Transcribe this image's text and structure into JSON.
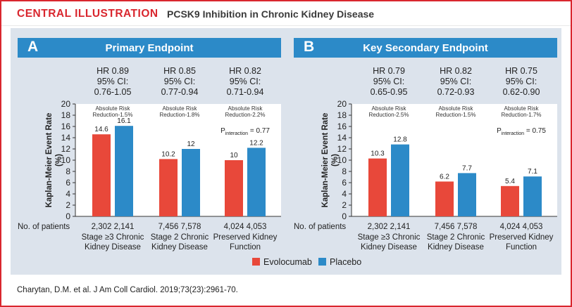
{
  "header": {
    "label": "CENTRAL ILLUSTRATION",
    "title": "PCSK9 Inhibition in Chronic Kidney Disease"
  },
  "citation": "Charytan, D.M. et al. J Am Coll Cardiol. 2019;73(23):2961-70.",
  "legend": [
    {
      "label": "Evolocumab",
      "color": "#e8483a"
    },
    {
      "label": "Placebo",
      "color": "#2c8ac8"
    }
  ],
  "colors": {
    "evolocumab": "#e8483a",
    "placebo": "#2c8ac8",
    "panel_header": "#2c8ac8",
    "accent": "#d9262e"
  },
  "chart_data": [
    {
      "type": "bar",
      "panel_letter": "A",
      "title": "Primary Endpoint",
      "ylabel": "Kaplan-Meier Event Rate (%)",
      "ylabel_lines": [
        "Kaplan-Meier Event Rate",
        "(%)"
      ],
      "ylim": [
        0,
        20
      ],
      "yticks": [
        0,
        2,
        4,
        6,
        8,
        10,
        12,
        14,
        16,
        18,
        20
      ],
      "n_patients_label": "No. of patients",
      "pinteraction": {
        "prefix": "P",
        "subscript": "interaction",
        "value": " = 0.77"
      },
      "categories": [
        {
          "lines": [
            "Stage ≥3 Chronic",
            "Kidney Disease"
          ],
          "hr": [
            "HR 0.89",
            "95% CI:",
            "0.76-1.05"
          ],
          "arr": [
            "Absolute Risk",
            "Reduction-1.5%"
          ],
          "n": [
            "2,302",
            "2,141"
          ]
        },
        {
          "lines": [
            "Stage 2 Chronic",
            "Kidney Disease"
          ],
          "hr": [
            "HR 0.85",
            "95% CI:",
            "0.77-0.94"
          ],
          "arr": [
            "Absolute Risk",
            "Reduction-1.8%"
          ],
          "n": [
            "7,456",
            "7,578"
          ]
        },
        {
          "lines": [
            "Preserved Kidney",
            "Function"
          ],
          "hr": [
            "HR 0.82",
            "95% CI:",
            "0.71-0.94"
          ],
          "arr": [
            "Absolute Risk",
            "Reduction-2.2%"
          ],
          "n": [
            "4,024",
            "4,053"
          ]
        }
      ],
      "series": [
        {
          "name": "Evolocumab",
          "values": [
            14.6,
            10.2,
            10
          ],
          "labels": [
            "14.6",
            "10.2",
            "10"
          ]
        },
        {
          "name": "Placebo",
          "values": [
            16.1,
            12,
            12.2
          ],
          "labels": [
            "16.1",
            "12",
            "12.2"
          ]
        }
      ]
    },
    {
      "type": "bar",
      "panel_letter": "B",
      "title": "Key Secondary Endpoint",
      "ylabel": "Kaplan-Meier Event Rate (%)",
      "ylabel_lines": [
        "Kaplan-Meier Event Rate",
        "(%)"
      ],
      "ylim": [
        0,
        20
      ],
      "yticks": [
        0,
        2,
        4,
        6,
        8,
        10,
        12,
        14,
        16,
        18,
        20
      ],
      "n_patients_label": "No. of patients",
      "pinteraction": {
        "prefix": "P",
        "subscript": "interaction",
        "value": " = 0.75"
      },
      "categories": [
        {
          "lines": [
            "Stage ≥3 Chronic",
            "Kidney Disease"
          ],
          "hr": [
            "HR 0.79",
            "95% CI:",
            "0.65-0.95"
          ],
          "arr": [
            "Absolute Risk",
            "Reduction-2.5%"
          ],
          "n": [
            "2,302",
            "2,141"
          ]
        },
        {
          "lines": [
            "Stage 2 Chronic",
            "Kidney Disease"
          ],
          "hr": [
            "HR 0.82",
            "95% CI:",
            "0.72-0.93"
          ],
          "arr": [
            "Absolute Risk",
            "Reduction-1.5%"
          ],
          "n": [
            "7,456",
            "7,578"
          ]
        },
        {
          "lines": [
            "Preserved Kidney",
            "Function"
          ],
          "hr": [
            "HR 0.75",
            "95% CI:",
            "0.62-0.90"
          ],
          "arr": [
            "Absolute Risk",
            "Reduction-1.7%"
          ],
          "n": [
            "4,024",
            "4,053"
          ]
        }
      ],
      "series": [
        {
          "name": "Evolocumab",
          "values": [
            10.3,
            6.2,
            5.4
          ],
          "labels": [
            "10.3",
            "6.2",
            "5.4"
          ]
        },
        {
          "name": "Placebo",
          "values": [
            12.8,
            7.7,
            7.1
          ],
          "labels": [
            "12.8",
            "7.7",
            "7.1"
          ]
        }
      ]
    }
  ]
}
